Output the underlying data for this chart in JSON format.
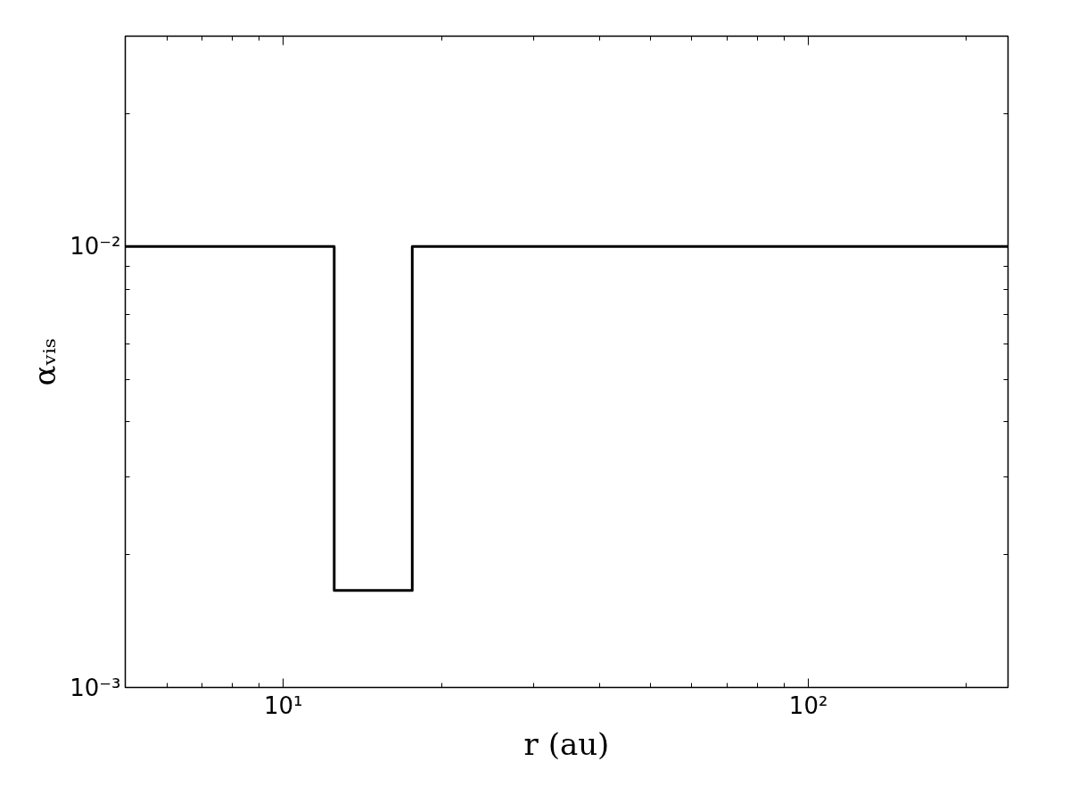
{
  "chart_data": {
    "type": "line",
    "xlabel": "r (au)",
    "ylabel": "αᵥᵢₛ",
    "series": [
      {
        "color": "#000000",
        "x": [
          5,
          12.5,
          12.5,
          17.6,
          17.6,
          240
        ],
        "values": [
          0.01,
          0.01,
          0.00166,
          0.00166,
          0.01,
          0.01
        ]
      }
    ],
    "log": "xy",
    "xlim": [
      5,
      240
    ],
    "ylim": [
      0.001,
      0.03
    ],
    "xticks": [
      {
        "value": 10,
        "label": "10¹"
      },
      {
        "value": 100,
        "label": "10²"
      }
    ],
    "yticks": [
      {
        "value": 0.001,
        "label": "10⁻³"
      },
      {
        "value": 0.01,
        "label": "10⁻²"
      }
    ],
    "grid": false,
    "marker": "none",
    "line_style": "solid"
  }
}
